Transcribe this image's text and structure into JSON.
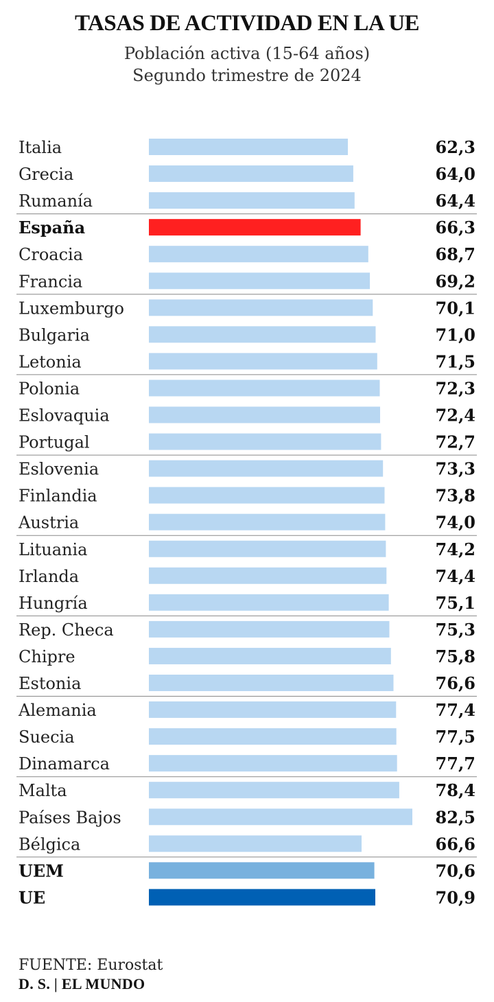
{
  "chart_data": {
    "type": "bar",
    "orientation": "horizontal",
    "title": "TASAS DE ACTIVIDAD EN LA UE",
    "subtitle": [
      "Población activa (15-64 años)",
      "Segundo trimestre de 2024"
    ],
    "xlim": [
      0,
      82.5
    ],
    "categories": [
      "Italia",
      "Grecia",
      "Rumanía",
      "España",
      "Croacia",
      "Francia",
      "Luxemburgo",
      "Bulgaria",
      "Letonia",
      "Polonia",
      "Eslovaquia",
      "Portugal",
      "Eslovenia",
      "Finlandia",
      "Austria",
      "Lituania",
      "Irlanda",
      "Hungría",
      "Rep. Checa",
      "Chipre",
      "Estonia",
      "Alemania",
      "Suecia",
      "Dinamarca",
      "Malta",
      "Países Bajos",
      "Bélgica",
      "UEM",
      "UE"
    ],
    "values": [
      62.3,
      64.0,
      64.4,
      66.3,
      68.7,
      69.2,
      70.1,
      71.0,
      71.5,
      72.3,
      72.4,
      72.7,
      73.3,
      73.8,
      74.0,
      74.2,
      74.4,
      75.1,
      75.3,
      75.8,
      76.6,
      77.4,
      77.5,
      77.7,
      78.4,
      82.5,
      66.6,
      70.6,
      70.9
    ],
    "value_labels": [
      "62,3",
      "64,0",
      "64,4",
      "66,3",
      "68,7",
      "69,2",
      "70,1",
      "71,0",
      "71,5",
      "72,3",
      "72,4",
      "72,7",
      "73,3",
      "73,8",
      "74,0",
      "74,2",
      "74,4",
      "75,1",
      "75,3",
      "75,8",
      "76,6",
      "77,4",
      "77,5",
      "77,7",
      "78,4",
      "82,5",
      "66,6",
      "70,6",
      "70,9"
    ],
    "bar_colors": {
      "default": "#b8d7f2",
      "España": "#ff2020",
      "UEM": "#78b1de",
      "UE": "#0060b4"
    },
    "bold_categories": [
      "España",
      "UEM",
      "UE"
    ],
    "separator_after_index": [
      2,
      5,
      8,
      11,
      14,
      17,
      20,
      23,
      26
    ]
  },
  "footer": {
    "source": "FUENTE: Eurostat",
    "credit": "D. S. | EL MUNDO"
  }
}
